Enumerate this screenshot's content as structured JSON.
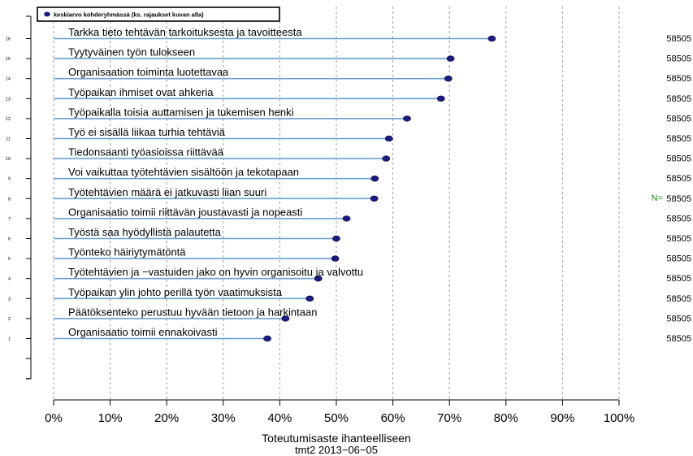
{
  "chart_data": {
    "type": "dot",
    "legend": {
      "label": "keskiarvo kohderyhmässä (ks. rajaukset kuvan alla)",
      "position": "top-left"
    },
    "xlabel": "Toteutumisaste ihanteelliseen",
    "subtitle": "tmt2 2013−06−05",
    "xlim": [
      0,
      100
    ],
    "x_ticks": [
      "0%",
      "10%",
      "20%",
      "30%",
      "40%",
      "50%",
      "60%",
      "70%",
      "80%",
      "90%",
      "100%"
    ],
    "n_label": "N=",
    "grid": "vertical dashed",
    "colors": {
      "stem": "#6a9fd0",
      "point": "#1c1c80",
      "n_label": "#2a8a2a",
      "grid": "#a0a0a0"
    },
    "items": [
      {
        "index": "16",
        "label": "Tarkka tieto tehtävän tarkoituksesta ja tavoitteesta",
        "value": 77.5,
        "n": "58505"
      },
      {
        "index": "15",
        "label": "Tyytyväinen työn tulokseen",
        "value": 70.2,
        "n": "58505"
      },
      {
        "index": "14",
        "label": "Organisaation toiminta luotettavaa",
        "value": 69.8,
        "n": "58505"
      },
      {
        "index": "13",
        "label": "Työpaikan ihmiset ovat ahkeria",
        "value": 68.5,
        "n": "58505"
      },
      {
        "index": "12",
        "label": "Työpaikalla toisia auttamisen ja tukemisen henki",
        "value": 62.5,
        "n": "58505"
      },
      {
        "index": "11",
        "label": "Työ ei sisällä liikaa turhia tehtäviä",
        "value": 59.3,
        "n": "58505"
      },
      {
        "index": "10",
        "label": "Tiedonsaanti työasioissa riittävää",
        "value": 58.8,
        "n": "58505"
      },
      {
        "index": "9",
        "label": "Voi vaikuttaa työtehtävien sisältöön ja tekotapaan",
        "value": 56.8,
        "n": "58505"
      },
      {
        "index": "8",
        "label": "Työtehtävien määrä ei jatkuvasti liian suuri",
        "value": 56.7,
        "n": "58505"
      },
      {
        "index": "7",
        "label": "Organisaatio toimii riittävän joustavasti ja nopeasti",
        "value": 51.8,
        "n": "58505"
      },
      {
        "index": "6",
        "label": "Työstä saa hyödyllistä palautetta",
        "value": 50.0,
        "n": "58505"
      },
      {
        "index": "5",
        "label": "Työnteko häiriytymätöntä",
        "value": 49.8,
        "n": "58505"
      },
      {
        "index": "4",
        "label": "Työtehtävien ja −vastuiden jako on hyvin organisoitu ja valvottu",
        "value": 46.8,
        "n": "58505"
      },
      {
        "index": "3",
        "label": "Työpaikan ylin johto perillä työn vaatimuksista",
        "value": 45.3,
        "n": "58505"
      },
      {
        "index": "2",
        "label": "Päätöksenteko perustuu hyvään tietoon ja harkintaan",
        "value": 41.0,
        "n": "58505"
      },
      {
        "index": "1",
        "label": "Organisaatio toimii ennakoivasti",
        "value": 37.8,
        "n": "58505"
      }
    ]
  }
}
